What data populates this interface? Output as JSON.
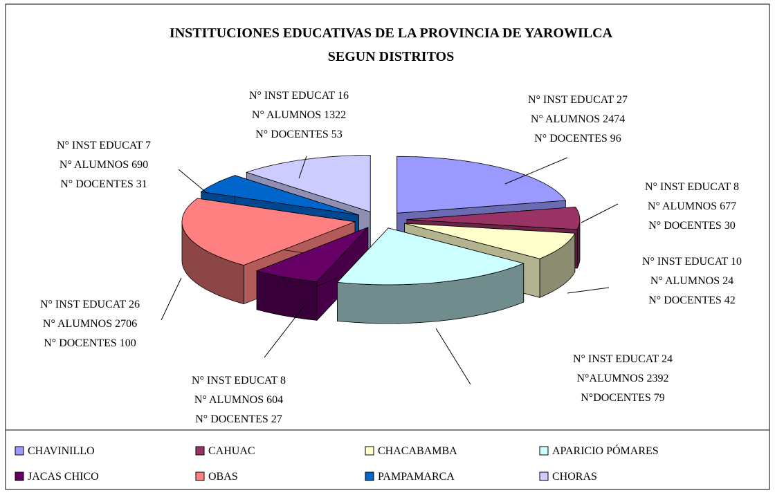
{
  "chart_data": {
    "type": "pie3d",
    "title": "INSTITUCIONES EDUCATIVAS DE LA PROVINCIA DE YAROWILCA",
    "subtitle": "SEGUN DISTRITOS",
    "categories": [
      "CHAVINILLO",
      "CAHUAC",
      "CHACABAMBA",
      "APARICIO PÓMARES",
      "JACAS CHICO",
      "OBAS",
      "PAMPAMARCA",
      "CHORAS"
    ],
    "values": [
      27,
      8,
      10,
      24,
      8,
      26,
      7,
      16
    ],
    "value_labels": [
      [
        "N° INST EDUCAT  27",
        "N° ALUMNOS 2474",
        "N° DOCENTES 96"
      ],
      [
        "N° INST EDUCAT 8",
        "N° ALUMNOS 677",
        "N° DOCENTES 30"
      ],
      [
        "N° INST EDUCAT 10",
        "N° ALUMNOS 24",
        "N° DOCENTES 42"
      ],
      [
        "N° INST EDUCAT 24",
        "N°ALUMNOS 2392",
        "N°DOCENTES 79"
      ],
      [
        "N° INST EDUCAT 8",
        "N° ALUMNOS 604",
        "N° DOCENTES 27"
      ],
      [
        "N° INST EDUCAT 26",
        "N° ALUMNOS 2706",
        "N° DOCENTES 100"
      ],
      [
        "N° INST EDUCAT 7",
        "N° ALUMNOS 690",
        "N° DOCENTES 31"
      ],
      [
        "N° INST EDUCAT 16",
        "N° ALUMNOS 1322",
        "N° DOCENTES 53"
      ]
    ],
    "colors": [
      "#9999ff",
      "#993366",
      "#ffffcc",
      "#ccffff",
      "#660066",
      "#ff8080",
      "#0066cc",
      "#ccccff"
    ],
    "legend": "bottom"
  }
}
